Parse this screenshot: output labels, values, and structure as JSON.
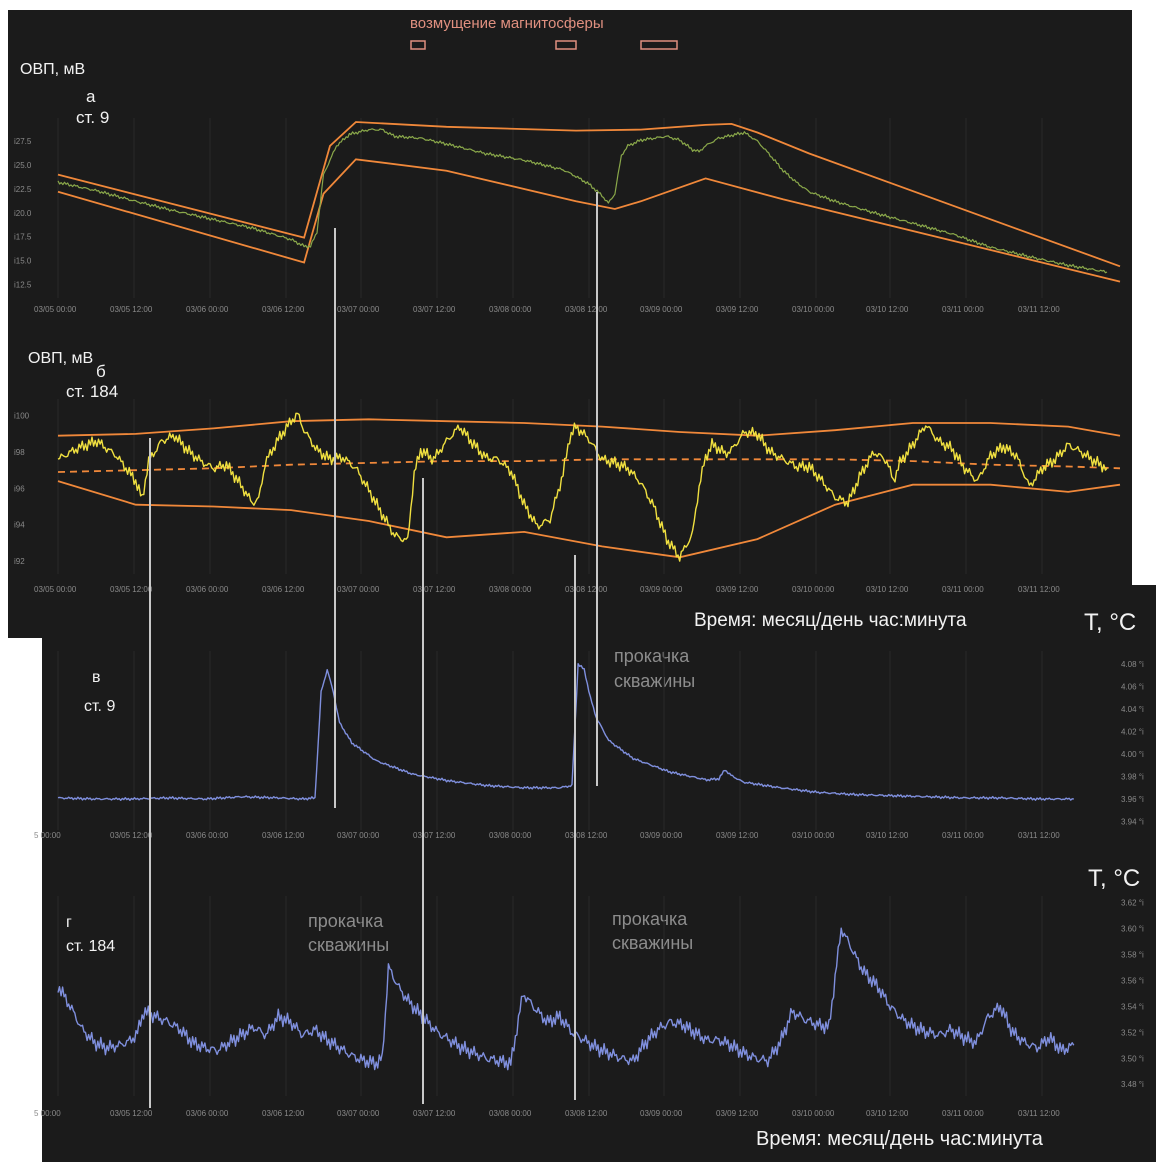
{
  "header": {
    "magnetosphere_label": "возмущение магнитосферы"
  },
  "panels": {
    "a": {
      "ylabel": "ОВП, мВ",
      "letter": "а",
      "station": "ст. 9"
    },
    "b": {
      "ylabel": "ОВП, мВ",
      "letter": "б",
      "station": "ст. 184"
    },
    "v": {
      "ylabel": "T, °C",
      "letter": "в",
      "station": "ст. 9",
      "annotation_line1": "прокачка",
      "annotation_line2": "скважины"
    },
    "g": {
      "ylabel": "T, °C",
      "letter": "г",
      "station": "ст. 184",
      "annotation_line1": "прокачка",
      "annotation_line2": "скважины"
    }
  },
  "xlabel": "Время: месяц/день час:минута",
  "colors": {
    "background": "#1b1b1b",
    "orp_line_a": "#8aa84a",
    "orp_line_b": "#f0e040",
    "envelope": "#f0883a",
    "temperature": "#7f8fdd",
    "pumping_marker": "#c8c8c8",
    "magnetosphere_box": "#e09080"
  },
  "chart_data": [
    {
      "id": "a",
      "type": "line",
      "ylabel": "ОВП, мВ",
      "x_ticks": [
        "03/05 00:00",
        "03/05 12:00",
        "03/06 00:00",
        "03/06 12:00",
        "03/07 00:00",
        "03/07 12:00",
        "03/08 00:00",
        "03/08 12:00",
        "03/09 00:00",
        "03/09 12:00",
        "03/10 00:00",
        "03/10 12:00",
        "03/11 00:00",
        "03/11 12:00"
      ],
      "y_ticks": [
        "i12.5",
        "i15.0",
        "i17.5",
        "i20.0",
        "i22.5",
        "i25.0",
        "i27.5"
      ],
      "y_values": [
        12.5,
        15.0,
        17.5,
        20.0,
        22.5,
        25.0,
        27.5
      ],
      "ylim": [
        11.5,
        29.5
      ],
      "xlim_hours": [
        0,
        164
      ],
      "series": [
        {
          "x": [
            0,
            6,
            12,
            18,
            24,
            30,
            36,
            38,
            39,
            40,
            41,
            43,
            45,
            48,
            50,
            52,
            54,
            56,
            60,
            66,
            72,
            78,
            80,
            82,
            84,
            85,
            86,
            87,
            88,
            90,
            94,
            96,
            98,
            99,
            100,
            102,
            104,
            106,
            108,
            110,
            112,
            114,
            116,
            120,
            126,
            132,
            138,
            144,
            150,
            156,
            162
          ],
          "y": [
            23.2,
            22.3,
            21.2,
            20.2,
            19.3,
            18.4,
            17.2,
            16.5,
            16.5,
            18.0,
            24.0,
            27.0,
            28.2,
            28.7,
            28.7,
            28.0,
            27.9,
            27.8,
            27.2,
            26.2,
            25.5,
            24.5,
            23.8,
            23.0,
            21.8,
            21.0,
            22.0,
            26.0,
            27.0,
            27.6,
            28.0,
            27.6,
            26.6,
            26.4,
            27.0,
            27.8,
            28.1,
            28.4,
            27.5,
            26.0,
            24.4,
            23.2,
            22.2,
            21.2,
            20.0,
            18.9,
            17.8,
            16.4,
            15.4,
            14.5,
            13.8
          ]
        }
      ],
      "envelope_upper": {
        "x": [
          0,
          38,
          42,
          46,
          60,
          80,
          90,
          100,
          104,
          108,
          116,
          164
        ],
        "y": [
          24.0,
          17.4,
          27.0,
          29.5,
          29.0,
          28.6,
          28.7,
          29.2,
          29.3,
          28.4,
          26.2,
          14.4
        ]
      },
      "envelope_lower": {
        "x": [
          0,
          38,
          41,
          46,
          60,
          80,
          86,
          90,
          100,
          112,
          164
        ],
        "y": [
          22.2,
          14.8,
          22.0,
          25.6,
          24.4,
          21.2,
          20.4,
          21.2,
          23.6,
          21.4,
          12.8
        ]
      }
    },
    {
      "id": "b",
      "type": "line",
      "ylabel": "ОВП, мВ",
      "x_ticks": [
        "03/05 00:00",
        "03/05 12:00",
        "03/06 00:00",
        "03/06 12:00",
        "03/07 00:00",
        "03/07 12:00",
        "03/08 00:00",
        "03/08 12:00",
        "03/09 00:00",
        "03/09 12:00",
        "03/10 00:00",
        "03/10 12:00",
        "03/11 00:00",
        "03/11 12:00"
      ],
      "y_ticks": [
        "i92",
        "i94",
        "i96",
        "i98",
        "i100"
      ],
      "y_values": [
        92,
        94,
        96,
        98,
        100
      ],
      "ylim": [
        91.5,
        100.7
      ],
      "xlim_hours": [
        0,
        164
      ],
      "series": [
        {
          "x": [
            0,
            3,
            6,
            9,
            12,
            13,
            14,
            16,
            18,
            20,
            22,
            24,
            26,
            28,
            30,
            31,
            32,
            34,
            36,
            37,
            38,
            40,
            42,
            44,
            46,
            48,
            50,
            52,
            54,
            55,
            56,
            58,
            60,
            62,
            64,
            66,
            68,
            70,
            72,
            74,
            76,
            78,
            79,
            80,
            82,
            84,
            86,
            88,
            90,
            92,
            94,
            96,
            98,
            99,
            100,
            101,
            102,
            103,
            104,
            106,
            108,
            110,
            112,
            114,
            116,
            118,
            120,
            122,
            124,
            126,
            128,
            129,
            130,
            132,
            134,
            136,
            138,
            140,
            142,
            144,
            146,
            148,
            150,
            152,
            154,
            156,
            158,
            160,
            162
          ],
          "y": [
            97.6,
            98.2,
            98.6,
            97.8,
            96.4,
            95.4,
            97.5,
            98.6,
            98.9,
            98.1,
            97.5,
            97.1,
            97.3,
            96.3,
            95.2,
            95.4,
            97.4,
            98.7,
            99.7,
            100.1,
            99.2,
            98.1,
            97.6,
            97.7,
            97.1,
            95.9,
            94.6,
            93.4,
            93.1,
            96.8,
            98.1,
            97.6,
            98.6,
            99.4,
            98.5,
            97.7,
            97.6,
            96.9,
            95.1,
            93.9,
            94.3,
            96.8,
            98.8,
            99.4,
            98.7,
            97.6,
            97.4,
            97.1,
            96.3,
            95.0,
            93.2,
            92.2,
            93.5,
            96.1,
            97.7,
            98.4,
            98.2,
            97.9,
            98.1,
            99.1,
            99.0,
            98.0,
            97.6,
            97.2,
            97.2,
            96.4,
            95.5,
            95.2,
            96.8,
            98.0,
            97.5,
            96.4,
            97.4,
            98.4,
            99.5,
            98.6,
            98.2,
            97.1,
            96.4,
            97.8,
            98.3,
            97.8,
            96.1,
            97.1,
            97.6,
            98.4,
            98.0,
            97.5,
            97.1
          ]
        }
      ],
      "trend": {
        "x": [
          0,
          12,
          24,
          36,
          48,
          60,
          72,
          84,
          96,
          108,
          120,
          132,
          144,
          156,
          164
        ],
        "y": [
          96.9,
          97.0,
          97.1,
          97.3,
          97.4,
          97.5,
          97.5,
          97.6,
          97.6,
          97.6,
          97.6,
          97.5,
          97.3,
          97.2,
          97.1
        ]
      },
      "envelope_upper": {
        "x": [
          0,
          12,
          24,
          36,
          48,
          60,
          72,
          84,
          96,
          108,
          120,
          132,
          144,
          156,
          164
        ],
        "y": [
          98.9,
          99.0,
          99.3,
          99.7,
          99.8,
          99.7,
          99.6,
          99.4,
          99.1,
          98.9,
          99.2,
          99.6,
          99.6,
          99.4,
          98.9
        ]
      },
      "envelope_lower": {
        "x": [
          0,
          12,
          24,
          36,
          48,
          60,
          72,
          84,
          96,
          108,
          120,
          132,
          144,
          156,
          164
        ],
        "y": [
          96.4,
          95.1,
          95.0,
          94.8,
          94.2,
          93.3,
          93.6,
          92.8,
          92.2,
          93.2,
          95.1,
          96.2,
          96.2,
          95.8,
          96.2
        ]
      }
    },
    {
      "id": "v",
      "type": "line",
      "ylabel": "T, °C",
      "x_ticks": [
        "5 00:00",
        "03/05 12:00",
        "03/06 00:00",
        "03/06 12:00",
        "03/07 00:00",
        "03/07 12:00",
        "03/08 00:00",
        "03/08 12:00",
        "03/09 00:00",
        "03/09 12:00",
        "03/10 00:00",
        "03/10 12:00",
        "03/11 00:00",
        "03/11 12:00"
      ],
      "y_ticks": [
        "3.94 °i",
        "3.96 °i",
        "3.98 °i",
        "4.00 °i",
        "4.02 °i",
        "4.04 °i",
        "4.06 °i",
        "4.08 °i"
      ],
      "y_values": [
        3.94,
        3.96,
        3.98,
        4.0,
        4.02,
        4.04,
        4.06,
        4.08
      ],
      "ylim": [
        3.936,
        4.088
      ],
      "xlim_hours": [
        0,
        168
      ],
      "series": [
        {
          "x": [
            0,
            6,
            12,
            18,
            24,
            30,
            36,
            40,
            42,
            43,
            44,
            45,
            46,
            48,
            52,
            58,
            64,
            70,
            76,
            80,
            82,
            84,
            85,
            86,
            87,
            88,
            90,
            94,
            100,
            106,
            108,
            109,
            110,
            112,
            118,
            124,
            130,
            136,
            142,
            148,
            154,
            160,
            166
          ],
          "y": [
            3.961,
            3.96,
            3.96,
            3.961,
            3.96,
            3.962,
            3.961,
            3.96,
            3.961,
            4.055,
            4.075,
            4.055,
            4.028,
            4.01,
            3.994,
            3.982,
            3.976,
            3.972,
            3.97,
            3.97,
            3.97,
            3.972,
            4.08,
            4.075,
            4.05,
            4.032,
            4.012,
            3.996,
            3.984,
            3.977,
            3.978,
            3.986,
            3.981,
            3.975,
            3.97,
            3.966,
            3.964,
            3.963,
            3.962,
            3.961,
            3.961,
            3.96,
            3.96
          ]
        }
      ]
    },
    {
      "id": "g",
      "type": "line",
      "ylabel": "T, °C",
      "x_ticks": [
        "5 00:00",
        "03/05 12:00",
        "03/06 00:00",
        "03/06 12:00",
        "03/07 00:00",
        "03/07 12:00",
        "03/08 00:00",
        "03/08 12:00",
        "03/09 00:00",
        "03/09 12:00",
        "03/10 00:00",
        "03/10 12:00",
        "03/11 00:00",
        "03/11 12:00"
      ],
      "y_ticks": [
        "3.48 °i",
        "3.50 °i",
        "3.52 °i",
        "3.54 °i",
        "3.56 °i",
        "3.58 °i",
        "3.60 °i",
        "3.62 °i"
      ],
      "y_values": [
        3.48,
        3.5,
        3.52,
        3.54,
        3.56,
        3.58,
        3.6,
        3.62
      ],
      "ylim": [
        3.474,
        3.622
      ],
      "xlim_hours": [
        0,
        168
      ],
      "series": [
        {
          "x": [
            0,
            2,
            4,
            6,
            8,
            10,
            12,
            13,
            14,
            16,
            18,
            20,
            22,
            24,
            26,
            28,
            30,
            32,
            34,
            36,
            38,
            40,
            42,
            44,
            46,
            48,
            50,
            52,
            53,
            54,
            56,
            58,
            60,
            62,
            64,
            66,
            68,
            70,
            72,
            74,
            76,
            78,
            80,
            82,
            84,
            86,
            88,
            90,
            92,
            94,
            96,
            98,
            100,
            102,
            104,
            106,
            108,
            110,
            112,
            114,
            116,
            118,
            120,
            122,
            124,
            126,
            128,
            130,
            131,
            132,
            134,
            136,
            138,
            140,
            142,
            144,
            146,
            148,
            150,
            152,
            154,
            156,
            158,
            160,
            162,
            164,
            166
          ],
          "y": [
            3.556,
            3.54,
            3.522,
            3.512,
            3.508,
            3.51,
            3.514,
            3.52,
            3.536,
            3.532,
            3.528,
            3.522,
            3.512,
            3.508,
            3.506,
            3.512,
            3.518,
            3.524,
            3.518,
            3.532,
            3.528,
            3.518,
            3.522,
            3.514,
            3.508,
            3.502,
            3.498,
            3.496,
            3.5,
            3.57,
            3.552,
            3.54,
            3.53,
            3.52,
            3.514,
            3.508,
            3.504,
            3.5,
            3.498,
            3.496,
            3.55,
            3.538,
            3.528,
            3.532,
            3.52,
            3.514,
            3.508,
            3.504,
            3.5,
            3.498,
            3.512,
            3.522,
            3.528,
            3.526,
            3.52,
            3.514,
            3.514,
            3.51,
            3.504,
            3.5,
            3.498,
            3.512,
            3.536,
            3.53,
            3.526,
            3.524,
            3.6,
            3.582,
            3.572,
            3.565,
            3.555,
            3.54,
            3.53,
            3.524,
            3.52,
            3.518,
            3.522,
            3.516,
            3.512,
            3.532,
            3.54,
            3.52,
            3.512,
            3.508,
            3.516,
            3.506,
            3.51
          ]
        }
      ]
    }
  ]
}
